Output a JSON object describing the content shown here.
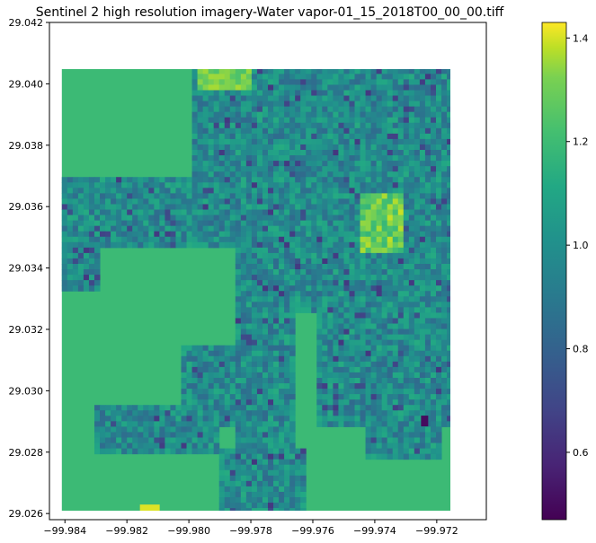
{
  "chart_data": {
    "type": "heatmap",
    "title": "Sentinel 2 high resolution imagery-Water vapor-01_15_2018T00_00_00.tiff",
    "xlabel": "",
    "ylabel": "",
    "xlim": [
      -99.9845,
      -99.9704
    ],
    "ylim": [
      29.0258,
      29.042
    ],
    "x_ticks": [
      -99.984,
      -99.982,
      -99.98,
      -99.978,
      -99.976,
      -99.974,
      -99.972
    ],
    "x_tick_labels": [
      "−99.984",
      "−99.982",
      "−99.980",
      "−99.978",
      "−99.976",
      "−99.974",
      "−99.972"
    ],
    "y_ticks": [
      29.026,
      29.028,
      29.03,
      29.032,
      29.034,
      29.036,
      29.038,
      29.04,
      29.042
    ],
    "y_tick_labels": [
      "29.026",
      "29.028",
      "29.030",
      "29.032",
      "29.034",
      "29.036",
      "29.038",
      "29.040",
      "29.042"
    ],
    "raster_extent": {
      "x": [
        -99.9841,
        -99.9715
      ],
      "y": [
        29.026,
        29.0405
      ]
    },
    "colormap": "viridis",
    "colorbar": {
      "vmin": 0.47,
      "vmax": 1.43,
      "ticks": [
        0.6,
        0.8,
        1.0,
        1.2,
        1.4
      ],
      "tick_labels": [
        "0.6",
        "0.8",
        "1.0",
        "1.2",
        "1.4"
      ]
    },
    "background_value": 1.12,
    "grid": false
  }
}
